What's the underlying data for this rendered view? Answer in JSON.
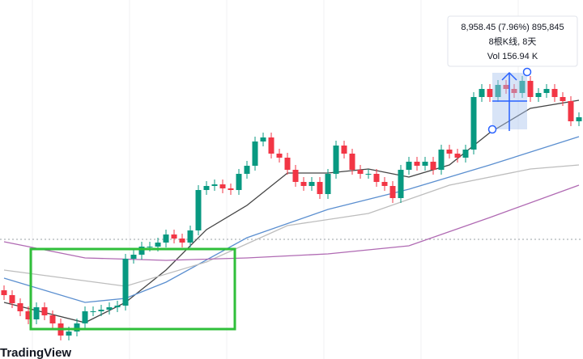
{
  "chart_data": {
    "type": "candlestick",
    "tooltip": [
      "8,958.45 (7.96%) 895,845",
      "8根K线, 8天",
      "Vol 156.94 K"
    ],
    "watermark": "TradingView",
    "ylim": [
      0,
      444
    ],
    "up_color": "#089981",
    "down_color": "#f23645",
    "open": [
      85,
      79,
      69,
      59,
      49,
      64,
      54,
      44,
      29,
      34,
      44,
      59,
      59,
      61,
      64,
      66,
      124,
      129,
      139,
      139,
      144,
      154,
      149,
      144,
      159,
      209,
      214,
      216,
      211,
      209,
      229,
      239,
      269,
      274,
      254,
      249,
      234,
      219,
      214,
      219,
      204,
      229,
      264,
      254,
      234,
      229,
      229,
      219,
      214,
      199,
      234,
      244,
      239,
      244,
      234,
      259,
      254,
      249,
      259,
      324,
      334,
      324,
      339,
      334,
      329,
      344,
      324,
      329,
      334,
      324,
      319,
      294
    ],
    "high": [
      91,
      85,
      75,
      65,
      70,
      70,
      60,
      50,
      40,
      50,
      65,
      65,
      67,
      70,
      72,
      130,
      135,
      145,
      145,
      150,
      160,
      160,
      155,
      165,
      215,
      220,
      222,
      222,
      217,
      235,
      245,
      275,
      280,
      280,
      260,
      255,
      240,
      225,
      225,
      225,
      235,
      270,
      270,
      260,
      240,
      235,
      235,
      225,
      220,
      240,
      250,
      250,
      250,
      250,
      265,
      265,
      260,
      265,
      330,
      340,
      340,
      345,
      345,
      340,
      350,
      350,
      335,
      340,
      340,
      330,
      325,
      305
    ],
    "low": [
      73,
      63,
      53,
      43,
      43,
      48,
      38,
      23,
      23,
      28,
      38,
      53,
      53,
      55,
      58,
      60,
      118,
      123,
      133,
      133,
      138,
      143,
      138,
      138,
      153,
      203,
      208,
      205,
      203,
      203,
      223,
      233,
      263,
      248,
      243,
      228,
      213,
      208,
      208,
      198,
      198,
      223,
      248,
      228,
      223,
      223,
      213,
      208,
      193,
      193,
      228,
      233,
      233,
      228,
      228,
      248,
      243,
      243,
      253,
      318,
      318,
      318,
      328,
      323,
      323,
      318,
      318,
      323,
      318,
      313,
      288,
      288
    ],
    "close": [
      79,
      69,
      59,
      49,
      64,
      54,
      44,
      29,
      34,
      44,
      59,
      59,
      61,
      64,
      66,
      124,
      129,
      139,
      139,
      144,
      154,
      149,
      144,
      159,
      209,
      214,
      216,
      211,
      209,
      229,
      239,
      269,
      274,
      254,
      249,
      234,
      219,
      214,
      219,
      204,
      229,
      264,
      254,
      234,
      229,
      229,
      219,
      214,
      199,
      234,
      244,
      239,
      244,
      234,
      259,
      254,
      249,
      259,
      324,
      334,
      324,
      339,
      334,
      329,
      344,
      324,
      329,
      334,
      324,
      319,
      294,
      299
    ],
    "series": [
      {
        "color": "#444444",
        "x": [
          0,
          10,
          15,
          20,
          25,
          30,
          35,
          40,
          45,
          50,
          55,
          60,
          65,
          71
        ],
        "values": [
          70,
          45,
          70,
          110,
          160,
          190,
          230,
          230,
          235,
          225,
          240,
          280,
          310,
          320
        ]
      },
      {
        "color": "#5b8fd0",
        "x": [
          0,
          10,
          15,
          20,
          30,
          40,
          50,
          60,
          71
        ],
        "values": [
          100,
          70,
          75,
          95,
          150,
          185,
          210,
          240,
          275
        ]
      },
      {
        "color": "#bdbdbd",
        "x": [
          0,
          15,
          25,
          35,
          45,
          55,
          65,
          71
        ],
        "values": [
          110,
          90,
          120,
          165,
          180,
          215,
          235,
          240
        ]
      },
      {
        "color": "#b06ab3",
        "x": [
          0,
          10,
          20,
          30,
          40,
          50,
          60,
          71
        ],
        "values": [
          145,
          125,
          122,
          125,
          130,
          140,
          175,
          215
        ]
      }
    ]
  }
}
